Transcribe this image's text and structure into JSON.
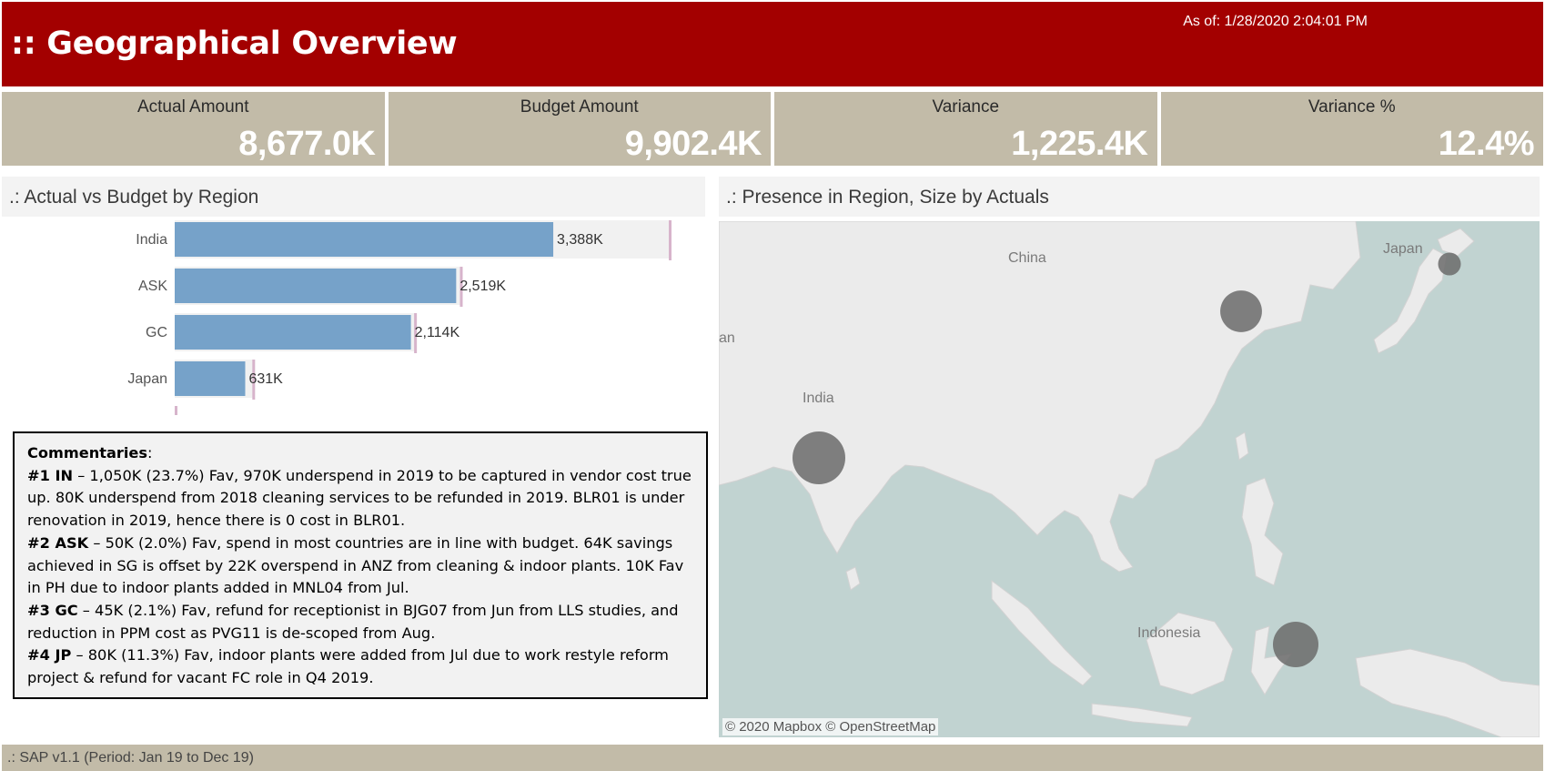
{
  "header": {
    "title": ":: Geographical Overview",
    "as_of": "As of: 1/28/2020 2:04:01 PM"
  },
  "kpis": [
    {
      "label": "Actual Amount",
      "value": "8,677.0K"
    },
    {
      "label": "Budget Amount",
      "value": "9,902.4K"
    },
    {
      "label": "Variance",
      "value": "1,225.4K"
    },
    {
      "label": "Variance %",
      "value": "12.4%"
    }
  ],
  "left_panel": {
    "title": ".: Actual vs Budget by Region"
  },
  "chart_data": {
    "type": "bar",
    "orientation": "horizontal",
    "categories": [
      "India",
      "ASK",
      "GC",
      "Japan"
    ],
    "series": [
      {
        "values": [
          3388,
          2519,
          2114,
          631
        ],
        "labels": [
          "3,388K",
          "2,519K",
          "2,114K",
          "631K"
        ]
      },
      {
        "values": [
          4438,
          2569,
          2159,
          711
        ]
      }
    ],
    "bar_color": "#76a2c9",
    "reference_color": "#d7b4cb",
    "title": "",
    "xlabel": "",
    "ylabel": "",
    "xlim": [
      0,
      4500
    ]
  },
  "commentary": {
    "heading": "Commentaries",
    "items": [
      {
        "tag": "#1 IN",
        "text": " – 1,050K (23.7%) Fav, 970K underspend in 2019 to be captured in vendor cost true up. 80K underspend from 2018 cleaning services to be refunded in 2019. BLR01 is under renovation in 2019, hence there is 0 cost in BLR01."
      },
      {
        "tag": "#2 ASK",
        "text": " – 50K (2.0%) Fav, spend in most countries are in line with budget. 64K savings achieved in SG is offset by 22K overspend in ANZ from cleaning & indoor plants. 10K Fav in PH due to indoor plants added in MNL04 from Jul."
      },
      {
        "tag": "#3 GC",
        "text": " – 45K (2.1%) Fav, refund for receptionist in BJG07 from Jun from LLS studies, and reduction in PPM cost as PVG11 is de-scoped from Aug."
      },
      {
        "tag": "#4 JP",
        "text": " – 80K (11.3%) Fav, indoor plants were added from Jul due to work restyle reform project & refund for vacant FC role in Q4 2019."
      }
    ]
  },
  "right_panel": {
    "title": ".: Presence in Region, Size by Actuals"
  },
  "map": {
    "labels": {
      "china": "China",
      "japan": "Japan",
      "india": "India",
      "indonesia": "Indonesia",
      "edge": "an"
    },
    "copyright": "© 2020 Mapbox © OpenStreetMap",
    "bubble_color": "#6b6b6b",
    "bubbles": [
      {
        "region": "India",
        "actual": 3388
      },
      {
        "region": "ASK",
        "actual": 2519
      },
      {
        "region": "GC",
        "actual": 2114
      },
      {
        "region": "Japan",
        "actual": 631
      }
    ]
  },
  "footer": {
    "text": ".: SAP v1.1 (Period: Jan 19 to Dec 19)"
  }
}
